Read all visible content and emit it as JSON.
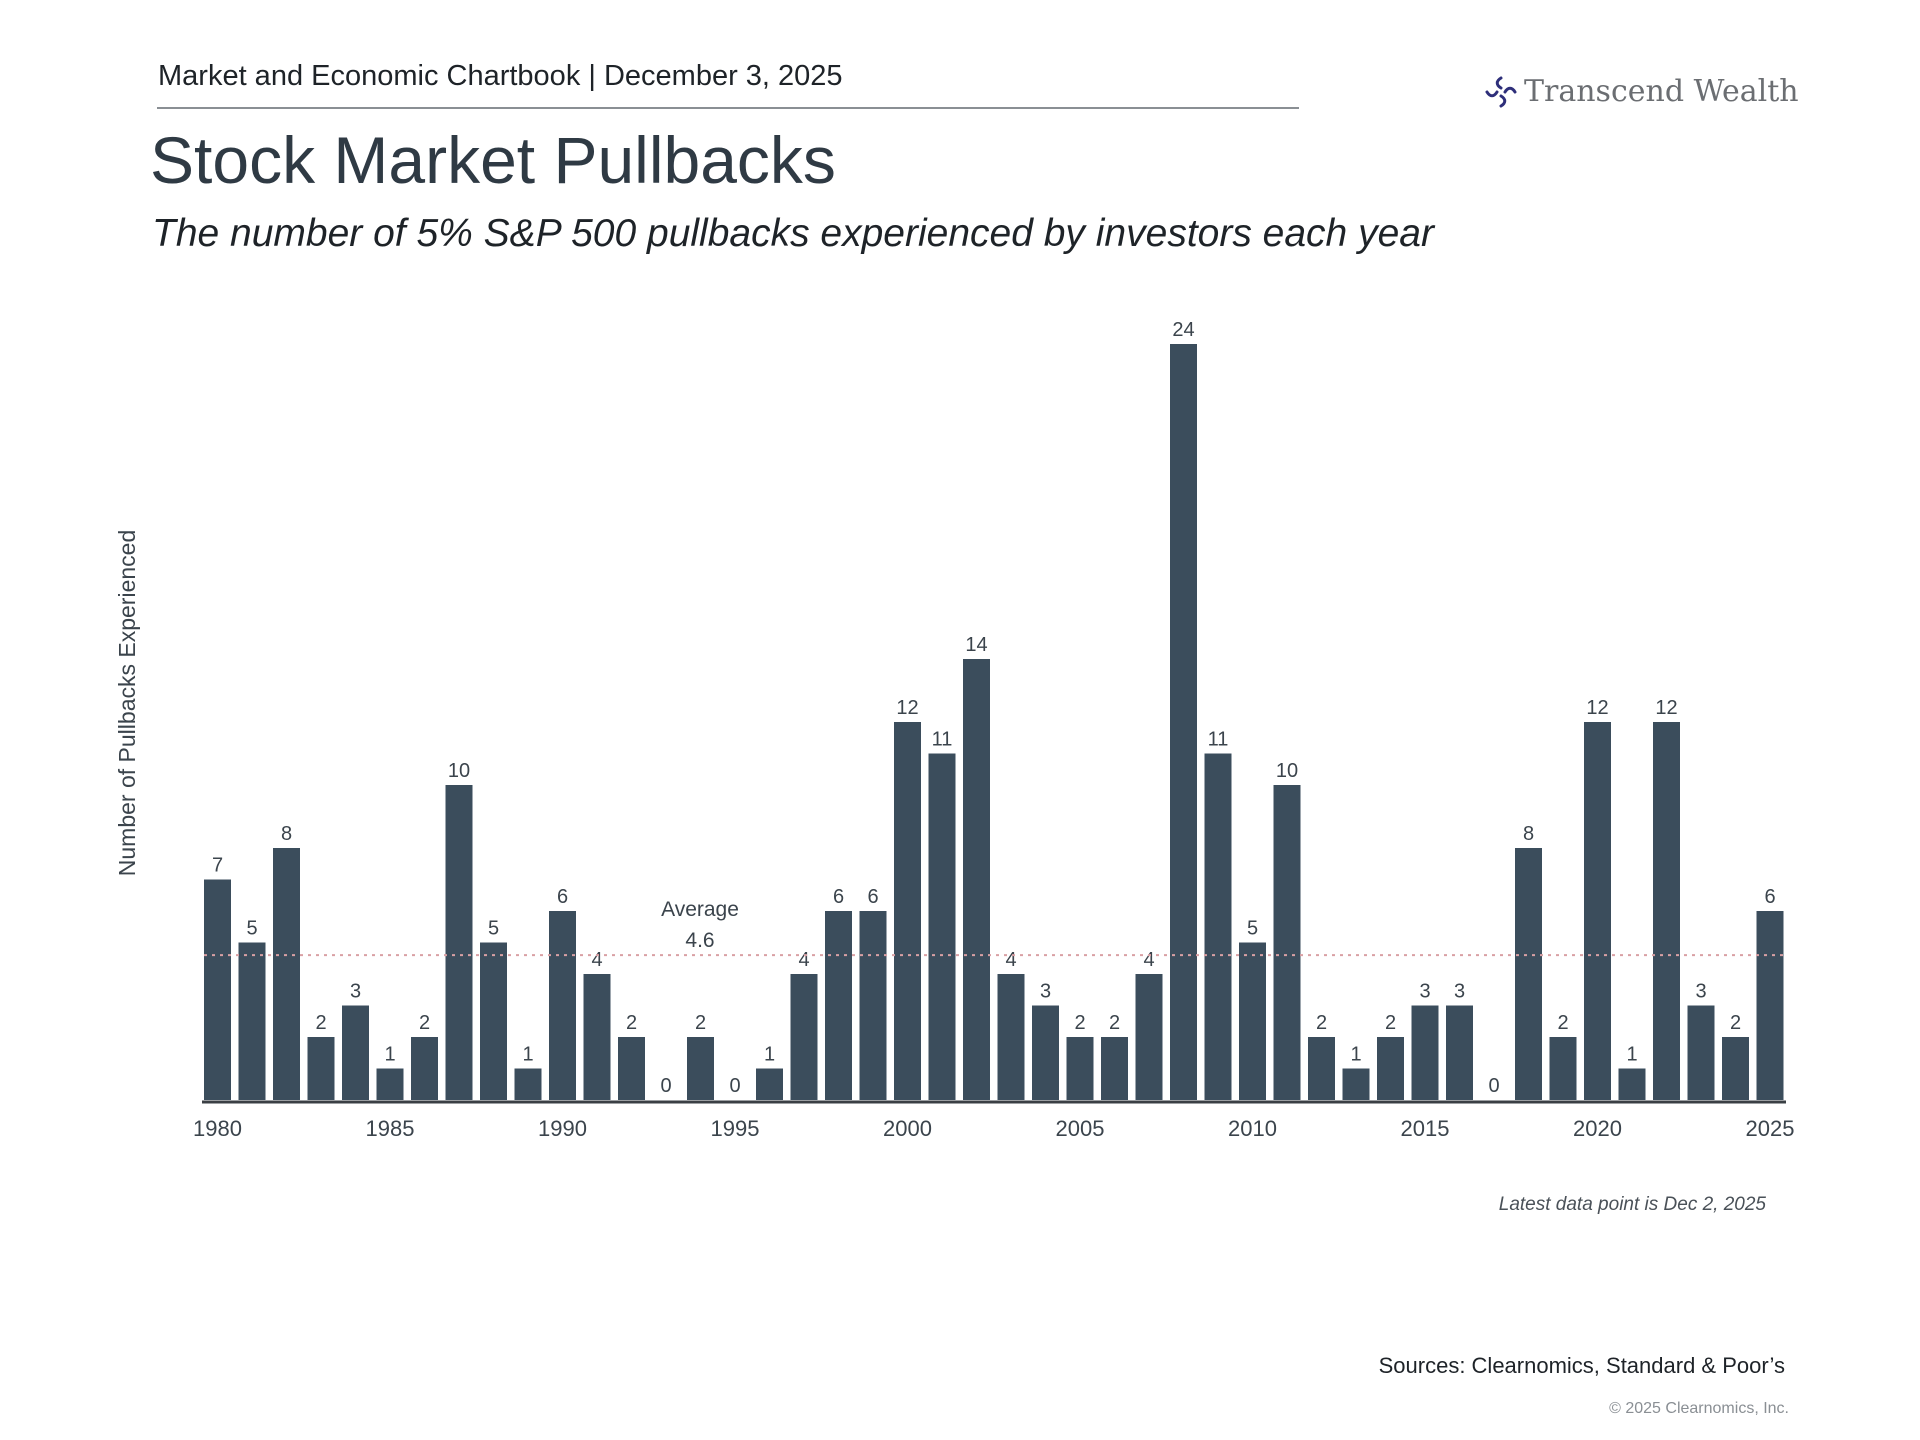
{
  "header": {
    "text": "Market and Economic Chartbook | December 3, 2025",
    "logo_text": "Transcend Wealth",
    "logo_icon": "four-arc-cross-icon",
    "logo_color": "#2e2f7a"
  },
  "title": "Stock Market Pullbacks",
  "subtitle": "The number of 5% S&P 500 pullbacks experienced by investors each year",
  "chart_data": {
    "type": "bar",
    "title": "",
    "xlabel": "",
    "ylabel": "Number of Pullbacks Experienced",
    "ylim": [
      0,
      24
    ],
    "grid": false,
    "bar_color": "#3b4d5c",
    "categories": [
      1980,
      1981,
      1982,
      1983,
      1984,
      1985,
      1986,
      1987,
      1988,
      1989,
      1990,
      1991,
      1992,
      1993,
      1994,
      1995,
      1996,
      1997,
      1998,
      1999,
      2000,
      2001,
      2002,
      2003,
      2004,
      2005,
      2006,
      2007,
      2008,
      2009,
      2010,
      2011,
      2012,
      2013,
      2014,
      2015,
      2016,
      2017,
      2018,
      2019,
      2020,
      2021,
      2022,
      2023,
      2024,
      2025
    ],
    "values": [
      7,
      5,
      8,
      2,
      3,
      1,
      2,
      10,
      5,
      1,
      6,
      4,
      2,
      0,
      2,
      0,
      1,
      4,
      6,
      6,
      12,
      11,
      14,
      4,
      3,
      2,
      2,
      4,
      24,
      11,
      5,
      10,
      2,
      1,
      2,
      3,
      3,
      0,
      8,
      2,
      12,
      1,
      12,
      3,
      2,
      6
    ],
    "x_tick_labels": [
      "1980",
      "1985",
      "1990",
      "1995",
      "2000",
      "2005",
      "2010",
      "2015",
      "2020",
      "2025"
    ],
    "average": {
      "value": 4.6,
      "label": "Average",
      "value_label": "4.6",
      "color": "#d9a0a4"
    }
  },
  "footer": {
    "note": "Latest data point is Dec 2, 2025",
    "sources": "Sources: Clearnomics, Standard & Poor’s",
    "copyright": "© 2025 Clearnomics, Inc."
  }
}
